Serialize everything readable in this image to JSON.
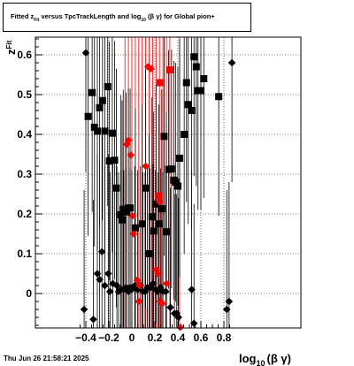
{
  "title": {
    "pre": "Fitted  z",
    "sub1": "Fit",
    "mid": "  versus TpcTrackLength and log",
    "sub2": "10",
    "post": " (β  γ) for Global pion+"
  },
  "date": "Thu Jun 26 21:58:21 2025",
  "chart_data": {
    "type": "scatter",
    "xlabel": "log",
    "xlabel_sub": "10",
    "xlabel_post": "(β γ)",
    "ylabel": "z",
    "ylabel_sub": "Fit",
    "xlim": [
      -0.47,
      0.88
    ],
    "ylim": [
      -0.09,
      0.65
    ],
    "x_ticks": [
      -0.4,
      -0.2,
      0,
      0.2,
      0.4,
      0.6,
      0.8
    ],
    "x_tick_labels": [
      "−0.4",
      "−0.2",
      "0",
      "0.2",
      "0.4",
      "0.6",
      "0.8"
    ],
    "y_ticks": [
      0,
      0.1,
      0.2,
      0.3,
      0.4,
      0.5,
      0.6
    ],
    "y_tick_labels": [
      "0",
      "0.1",
      "0.2",
      "0.3",
      "0.4",
      "0.5",
      "0.6"
    ],
    "grid": true,
    "colors": {
      "black": "#000000",
      "red": "#ff0000"
    },
    "red_lines_x": [
      -0.06,
      -0.03,
      0.0,
      0.03,
      0.06,
      0.09,
      0.12,
      0.15,
      0.18,
      0.21,
      0.24,
      0.27,
      0.3,
      0.33,
      0.415
    ],
    "series": [
      {
        "marker": "square",
        "color": "#000000",
        "points": [
          {
            "x": -0.38,
            "y": 0.445,
            "e": 0.3
          },
          {
            "x": -0.345,
            "y": 0.505,
            "e": 0.3
          },
          {
            "x": -0.325,
            "y": 0.418,
            "e": 0.3
          },
          {
            "x": -0.3,
            "y": 0.408,
            "e": 0.3
          },
          {
            "x": -0.28,
            "y": 0.467,
            "e": 0.3
          },
          {
            "x": -0.255,
            "y": 0.485,
            "e": 0.3
          },
          {
            "x": -0.235,
            "y": 0.408,
            "e": 0.3
          },
          {
            "x": -0.21,
            "y": 0.52,
            "e": 0.3
          },
          {
            "x": -0.195,
            "y": 0.333,
            "e": 0.3
          },
          {
            "x": -0.17,
            "y": 0.403,
            "e": 0.3
          },
          {
            "x": -0.15,
            "y": 0.335,
            "e": 0.3
          },
          {
            "x": -0.135,
            "y": 0.265,
            "e": 0.3
          },
          {
            "x": -0.095,
            "y": 0.198,
            "e": 0.3
          },
          {
            "x": -0.085,
            "y": 0.185,
            "e": 0.3
          },
          {
            "x": -0.075,
            "y": 0.212,
            "e": 0.3
          },
          {
            "x": -0.05,
            "y": 0.205,
            "e": 0.3
          },
          {
            "x": -0.03,
            "y": 0.215,
            "e": 0.3
          },
          {
            "x": -0.015,
            "y": 0.215,
            "e": 0.3
          },
          {
            "x": 0.03,
            "y": 0.165,
            "e": 0.3
          },
          {
            "x": 0.09,
            "y": 0.175,
            "e": 0.3
          },
          {
            "x": 0.12,
            "y": 0.265,
            "e": 0.3
          },
          {
            "x": 0.15,
            "y": 0.1,
            "e": 0.3
          },
          {
            "x": 0.175,
            "y": 0.193,
            "e": 0.3
          },
          {
            "x": 0.19,
            "y": 0.157,
            "e": 0.3
          },
          {
            "x": 0.21,
            "y": 0.225,
            "e": 0.3
          },
          {
            "x": 0.235,
            "y": 0.175,
            "e": 0.3
          },
          {
            "x": 0.26,
            "y": 0.213,
            "e": 0.3
          },
          {
            "x": 0.28,
            "y": 0.395,
            "e": 0.3
          },
          {
            "x": 0.3,
            "y": 0.155,
            "e": 0.3
          },
          {
            "x": 0.32,
            "y": 0.312,
            "e": 0.3
          },
          {
            "x": 0.345,
            "y": 0.313,
            "e": 0.3
          },
          {
            "x": 0.365,
            "y": 0.285,
            "e": 0.3
          },
          {
            "x": 0.38,
            "y": 0.28,
            "e": 0.3
          },
          {
            "x": 0.4,
            "y": 0.27,
            "e": 0.3
          },
          {
            "x": 0.415,
            "y": 0.34,
            "e": 0.3
          },
          {
            "x": 0.455,
            "y": 0.4,
            "e": 0.3
          },
          {
            "x": 0.475,
            "y": 0.53,
            "e": 0.3
          },
          {
            "x": 0.49,
            "y": 0.475,
            "e": 0.3
          },
          {
            "x": 0.52,
            "y": 0.46,
            "e": 0.3
          },
          {
            "x": 0.54,
            "y": 0.595,
            "e": 0.3
          },
          {
            "x": 0.56,
            "y": 0.57,
            "e": 0.3
          },
          {
            "x": 0.575,
            "y": 0.51,
            "e": 0.3
          },
          {
            "x": 0.6,
            "y": 0.51,
            "e": 0.3
          },
          {
            "x": 0.625,
            "y": 0.54,
            "e": 0.3
          },
          {
            "x": 0.755,
            "y": 0.495,
            "e": 0.3
          }
        ]
      },
      {
        "marker": "diamond",
        "color": "#000000",
        "points": [
          {
            "x": -0.415,
            "y": -0.04,
            "e": 0.3
          },
          {
            "x": -0.4,
            "y": 0.605,
            "e": 0.3
          },
          {
            "x": -0.335,
            "y": -0.065,
            "e": 0.3
          },
          {
            "x": -0.3,
            "y": 0.05,
            "e": 0.3
          },
          {
            "x": -0.28,
            "y": 0.035,
            "e": 0.3
          },
          {
            "x": -0.26,
            "y": 0.105,
            "e": 0.3
          },
          {
            "x": -0.235,
            "y": 0.02,
            "e": 0.3
          },
          {
            "x": -0.205,
            "y": 0.05,
            "e": 0.3
          },
          {
            "x": -0.19,
            "y": 0.005,
            "e": 0.3
          },
          {
            "x": -0.165,
            "y": 0.025,
            "e": 0.3
          },
          {
            "x": -0.13,
            "y": 0.02,
            "e": 0.3
          },
          {
            "x": -0.115,
            "y": 0.005,
            "e": 0.3
          },
          {
            "x": -0.095,
            "y": 0.01,
            "e": 0.3
          },
          {
            "x": -0.07,
            "y": 0.01,
            "e": 0.3
          },
          {
            "x": -0.05,
            "y": 0.015,
            "e": 0.3
          },
          {
            "x": -0.03,
            "y": 0.005,
            "e": 0.3
          },
          {
            "x": -0.015,
            "y": 0.015,
            "e": 0.3
          },
          {
            "x": 0.0,
            "y": 0.01,
            "e": 0.3
          },
          {
            "x": 0.025,
            "y": 0.02,
            "e": 0.3
          },
          {
            "x": 0.05,
            "y": 0.01,
            "e": 0.3
          },
          {
            "x": 0.075,
            "y": 0.02,
            "e": 0.3
          },
          {
            "x": 0.095,
            "y": 0.005,
            "e": 0.3
          },
          {
            "x": 0.115,
            "y": 0.005,
            "e": 0.3
          },
          {
            "x": 0.135,
            "y": 0.015,
            "e": 0.3
          },
          {
            "x": 0.16,
            "y": 0.015,
            "e": 0.3
          },
          {
            "x": 0.185,
            "y": 0.025,
            "e": 0.3
          },
          {
            "x": 0.205,
            "y": 0.01,
            "e": 0.3
          },
          {
            "x": 0.225,
            "y": 0.005,
            "e": 0.3
          },
          {
            "x": 0.25,
            "y": 0.015,
            "e": 0.3
          },
          {
            "x": 0.27,
            "y": 0.005,
            "e": 0.3
          },
          {
            "x": 0.295,
            "y": 0.005,
            "e": 0.3
          },
          {
            "x": 0.335,
            "y": -0.035,
            "e": 0.3
          },
          {
            "x": 0.37,
            "y": -0.05,
            "e": 0.3
          },
          {
            "x": 0.39,
            "y": -0.05,
            "e": 0.3
          },
          {
            "x": 0.405,
            "y": -0.06,
            "e": 0.3
          },
          {
            "x": 0.52,
            "y": 0.01,
            "e": 0.3
          },
          {
            "x": 0.54,
            "y": -0.075,
            "e": 0.3
          },
          {
            "x": 0.825,
            "y": -0.04,
            "e": 0.3
          },
          {
            "x": 0.845,
            "y": -0.02,
            "e": 0.3
          },
          {
            "x": 0.87,
            "y": 0.58,
            "e": 0.3
          }
        ]
      },
      {
        "marker": "square",
        "color": "#ff0000",
        "points": [
          {
            "x": 0.23,
            "y": 0.245
          },
          {
            "x": 0.245,
            "y": 0.53
          },
          {
            "x": 0.33,
            "y": 0.562
          }
        ]
      },
      {
        "marker": "diamond",
        "color": "#ff0000",
        "points": [
          {
            "x": -0.045,
            "y": 0.375
          },
          {
            "x": -0.03,
            "y": 0.385
          },
          {
            "x": -0.01,
            "y": 0.348
          },
          {
            "x": 0.005,
            "y": 0.195
          },
          {
            "x": 0.015,
            "y": 0.15
          },
          {
            "x": 0.045,
            "y": 0.033
          },
          {
            "x": 0.06,
            "y": -0.02
          },
          {
            "x": 0.065,
            "y": 0.02
          },
          {
            "x": 0.12,
            "y": 0.32
          },
          {
            "x": 0.14,
            "y": 0.57
          },
          {
            "x": 0.165,
            "y": 0.565
          },
          {
            "x": 0.21,
            "y": 0.06
          },
          {
            "x": 0.225,
            "y": 0.05
          },
          {
            "x": 0.24,
            "y": 0.23
          },
          {
            "x": 0.245,
            "y": -0.02
          },
          {
            "x": 0.265,
            "y": -0.025
          },
          {
            "x": 0.3,
            "y": 0.025
          },
          {
            "x": 0.42,
            "y": -0.085
          }
        ]
      }
    ]
  }
}
